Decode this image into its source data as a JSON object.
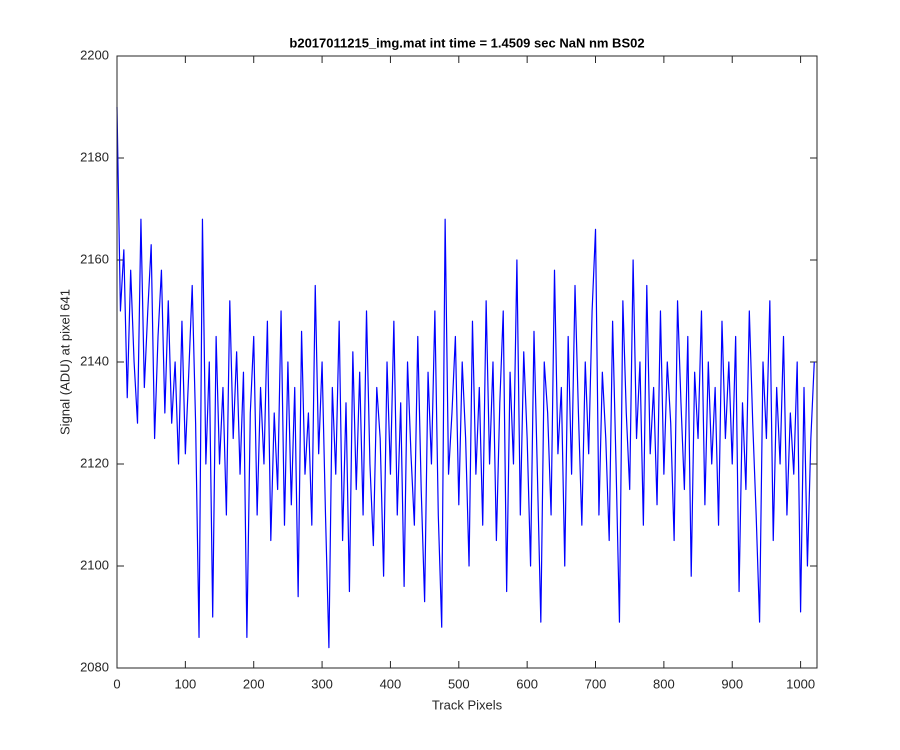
{
  "chart_data": {
    "type": "line",
    "title": "b2017011215_img.mat int time = 1.4509 sec  NaN nm BS02",
    "x_label": "Track Pixels",
    "y_label": "Signal (ADU) at pixel 641",
    "xlim": [
      0,
      1024
    ],
    "xticks": [
      0,
      100,
      200,
      300,
      400,
      500,
      600,
      700,
      800,
      900,
      1000
    ],
    "ylim": [
      2080,
      2200
    ],
    "yticks": [
      2080,
      2100,
      2120,
      2140,
      2160,
      2180,
      2200
    ],
    "grid": false,
    "x": [
      0,
      5,
      10,
      15,
      20,
      25,
      30,
      35,
      40,
      45,
      50,
      55,
      60,
      65,
      70,
      75,
      80,
      85,
      90,
      95,
      100,
      105,
      110,
      115,
      120,
      125,
      130,
      135,
      140,
      145,
      150,
      155,
      160,
      165,
      170,
      175,
      180,
      185,
      190,
      195,
      200,
      205,
      210,
      215,
      220,
      225,
      230,
      235,
      240,
      245,
      250,
      255,
      260,
      265,
      270,
      275,
      280,
      285,
      290,
      295,
      300,
      305,
      310,
      315,
      320,
      325,
      330,
      335,
      340,
      345,
      350,
      355,
      360,
      365,
      370,
      375,
      380,
      385,
      390,
      395,
      400,
      405,
      410,
      415,
      420,
      425,
      430,
      435,
      440,
      445,
      450,
      455,
      460,
      465,
      470,
      475,
      480,
      485,
      490,
      495,
      500,
      505,
      510,
      515,
      520,
      525,
      530,
      535,
      540,
      545,
      550,
      555,
      560,
      565,
      570,
      575,
      580,
      585,
      590,
      595,
      600,
      605,
      610,
      615,
      620,
      625,
      630,
      635,
      640,
      645,
      650,
      655,
      660,
      665,
      670,
      675,
      680,
      685,
      690,
      695,
      700,
      705,
      710,
      715,
      720,
      725,
      730,
      735,
      740,
      745,
      750,
      755,
      760,
      765,
      770,
      775,
      780,
      785,
      790,
      795,
      800,
      805,
      810,
      815,
      820,
      825,
      830,
      835,
      840,
      845,
      850,
      855,
      860,
      865,
      870,
      875,
      880,
      885,
      890,
      895,
      900,
      905,
      910,
      915,
      920,
      925,
      930,
      935,
      940,
      945,
      950,
      955,
      960,
      965,
      970,
      975,
      980,
      985,
      990,
      995,
      1000,
      1005,
      1010,
      1015,
      1020
    ],
    "series": [
      {
        "name": "signal",
        "color": "#0000ff",
        "values": [
          2190,
          2150,
          2162,
          2133,
          2158,
          2140,
          2128,
          2168,
          2135,
          2150,
          2163,
          2125,
          2145,
          2158,
          2130,
          2152,
          2128,
          2140,
          2120,
          2148,
          2122,
          2138,
          2155,
          2128,
          2086,
          2168,
          2120,
          2140,
          2090,
          2145,
          2120,
          2135,
          2110,
          2152,
          2125,
          2142,
          2118,
          2138,
          2086,
          2130,
          2145,
          2110,
          2135,
          2120,
          2148,
          2105,
          2130,
          2115,
          2150,
          2108,
          2140,
          2112,
          2135,
          2094,
          2146,
          2118,
          2130,
          2108,
          2155,
          2122,
          2140,
          2110,
          2084,
          2135,
          2118,
          2148,
          2105,
          2132,
          2095,
          2142,
          2115,
          2138,
          2110,
          2150,
          2120,
          2104,
          2135,
          2125,
          2098,
          2140,
          2118,
          2148,
          2110,
          2132,
          2096,
          2140,
          2122,
          2108,
          2145,
          2115,
          2093,
          2138,
          2120,
          2150,
          2110,
          2088,
          2168,
          2118,
          2130,
          2145,
          2112,
          2140,
          2125,
          2100,
          2148,
          2118,
          2135,
          2108,
          2152,
          2120,
          2140,
          2105,
          2132,
          2150,
          2095,
          2138,
          2120,
          2160,
          2110,
          2142,
          2125,
          2100,
          2146,
          2118,
          2089,
          2140,
          2130,
          2110,
          2158,
          2122,
          2135,
          2100,
          2145,
          2118,
          2155,
          2130,
          2108,
          2140,
          2122,
          2150,
          2166,
          2110,
          2138,
          2125,
          2105,
          2148,
          2120,
          2089,
          2152,
          2130,
          2115,
          2160,
          2125,
          2140,
          2108,
          2155,
          2122,
          2135,
          2112,
          2150,
          2118,
          2140,
          2128,
          2105,
          2152,
          2132,
          2115,
          2145,
          2098,
          2138,
          2125,
          2150,
          2112,
          2140,
          2120,
          2135,
          2108,
          2148,
          2125,
          2140,
          2120,
          2145,
          2095,
          2132,
          2115,
          2150,
          2128,
          2110,
          2089,
          2140,
          2125,
          2152,
          2105,
          2135,
          2120,
          2145,
          2110,
          2130,
          2118,
          2140,
          2091,
          2135,
          2100,
          2125,
          2140
        ]
      }
    ]
  }
}
